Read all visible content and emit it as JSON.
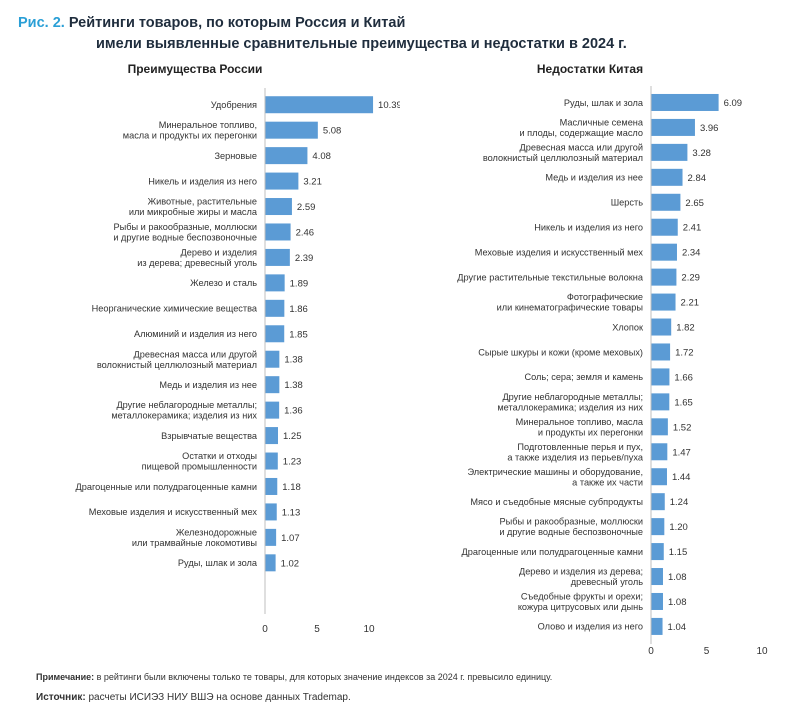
{
  "figure": {
    "number": "Рис. 2.",
    "title_line1": "Рейтинги товаров, по которым Россия и Китай",
    "title_line2": "имели выявленные сравнительные преимущества и недостатки в 2024 г."
  },
  "chart_data": [
    {
      "type": "bar",
      "orientation": "horizontal",
      "title": "Преимущества России",
      "xlim": [
        0,
        10
      ],
      "xticks": [
        "0",
        "5",
        "10"
      ],
      "grid": false,
      "categories": [
        [
          "Удобрения"
        ],
        [
          "Минеральное топливо,",
          "масла и продукты их перегонки"
        ],
        [
          "Зерновые"
        ],
        [
          "Никель и изделия из него"
        ],
        [
          "Животные, растительные",
          "или микробные жиры и масла"
        ],
        [
          "Рыбы и ракообразные, моллюски",
          "и другие водные беспозвоночные"
        ],
        [
          "Дерево и изделия",
          "из дерева; древесный уголь"
        ],
        [
          "Железо и сталь"
        ],
        [
          "Неорганические химические вещества"
        ],
        [
          "Алюминий и изделия из него"
        ],
        [
          "Древесная масса или другой",
          "волокнистый целлюлозный материал"
        ],
        [
          "Медь и изделия из нее"
        ],
        [
          "Другие неблагородные металлы;",
          "металлокерамика; изделия из них"
        ],
        [
          "Взрывчатые вещества"
        ],
        [
          "Остатки и отходы",
          "пищевой промышленности"
        ],
        [
          "Драгоценные или полудрагоценные камни"
        ],
        [
          "Меховые изделия и искусственный мех"
        ],
        [
          "Железнодорожные",
          "или трамвайные локомотивы"
        ],
        [
          "Руды, шлак и зола"
        ]
      ],
      "values": [
        10.39,
        5.08,
        4.08,
        3.21,
        2.59,
        2.46,
        2.39,
        1.89,
        1.86,
        1.85,
        1.38,
        1.38,
        1.36,
        1.25,
        1.23,
        1.18,
        1.13,
        1.07,
        1.02
      ],
      "value_labels": [
        "10.39",
        "5.08",
        "4.08",
        "3.21",
        "2.59",
        "2.46",
        "2.39",
        "1.89",
        "1.86",
        "1.85",
        "1.38",
        "1.38",
        "1.36",
        "1.25",
        "1.23",
        "1.18",
        "1.13",
        "1.07",
        "1.02"
      ],
      "bar_color": "#5b9bd5"
    },
    {
      "type": "bar",
      "orientation": "horizontal",
      "title": "Недостатки Китая",
      "xlim": [
        0,
        10
      ],
      "xticks": [
        "0",
        "5",
        "10"
      ],
      "grid": false,
      "categories": [
        [
          "Руды, шлак и зола"
        ],
        [
          "Масличные семена",
          "и плоды, содержащие масло"
        ],
        [
          "Древесная масса или другой",
          "волокнистый целлюлозный материал"
        ],
        [
          "Медь и изделия из нее"
        ],
        [
          "Шерсть"
        ],
        [
          "Никель и изделия из него"
        ],
        [
          "Меховые изделия и искусственный мех"
        ],
        [
          "Другие растительные текстильные волокна"
        ],
        [
          "Фотографические",
          "или кинематографические товары"
        ],
        [
          "Хлопок"
        ],
        [
          "Сырые шкуры и кожи (кроме меховых)"
        ],
        [
          "Соль; сера; земля и камень"
        ],
        [
          "Другие неблагородные металлы;",
          "металлокерамика; изделия из них"
        ],
        [
          "Минеральное топливо, масла",
          "и продукты их перегонки"
        ],
        [
          "Подготовленные перья и пух,",
          "а также изделия из перьев/пуха"
        ],
        [
          "Электрические машины и оборудование,",
          "а также их части"
        ],
        [
          "Мясо и съедобные мясные субпродукты"
        ],
        [
          "Рыбы и ракообразные, моллюски",
          "и другие водные беспозвоночные"
        ],
        [
          "Драгоценные или полудрагоценные камни"
        ],
        [
          "Дерево и изделия из дерева;",
          "древесный уголь"
        ],
        [
          "Съедобные фрукты и орехи;",
          "кожура цитрусовых или дынь"
        ],
        [
          "Олово и изделия из него"
        ]
      ],
      "values": [
        6.09,
        3.96,
        3.28,
        2.84,
        2.65,
        2.41,
        2.34,
        2.29,
        2.21,
        1.82,
        1.72,
        1.66,
        1.65,
        1.52,
        1.47,
        1.44,
        1.24,
        1.2,
        1.15,
        1.08,
        1.08,
        1.04
      ],
      "value_labels": [
        "6.09",
        "3.96",
        "3.28",
        "2.84",
        "2.65",
        "2.41",
        "2.34",
        "2.29",
        "2.21",
        "1.82",
        "1.72",
        "1.66",
        "1.65",
        "1.52",
        "1.47",
        "1.44",
        "1.24",
        "1.20",
        "1.15",
        "1.08",
        "1.08",
        "1.04"
      ],
      "bar_color": "#5b9bd5"
    }
  ],
  "footer": {
    "note_label": "Примечание:",
    "note_text": " в рейтинги были включены только те товары, для которых значение индексов за 2024 г. превысило единицу.",
    "source_label": "Источник:",
    "source_text": " расчеты ИСИЭЗ НИУ ВШЭ на основе данных Trademap."
  }
}
